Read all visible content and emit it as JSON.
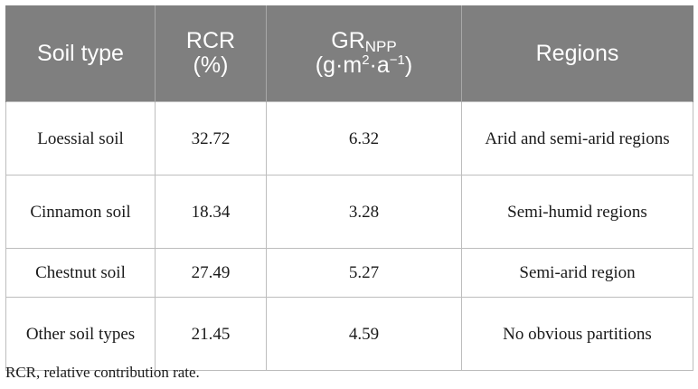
{
  "table": {
    "headers": {
      "soil_type": "Soil type",
      "rcr_line1": "RCR",
      "rcr_line2": "(%)",
      "gr_main": "GR",
      "gr_sub": "NPP",
      "gr_unit_a": "(g·m",
      "gr_unit_sup1": "2",
      "gr_unit_b": "·a",
      "gr_unit_sup2": "−1",
      "gr_unit_c": ")",
      "regions": "Regions"
    },
    "rows": [
      {
        "soil_type": "Loessial soil",
        "rcr": "32.72",
        "gr_npp": "6.32",
        "regions": "Arid and semi-arid regions"
      },
      {
        "soil_type": "Cinnamon soil",
        "rcr": "18.34",
        "gr_npp": "3.28",
        "regions": "Semi-humid regions"
      },
      {
        "soil_type": "Chestnut soil",
        "rcr": "27.49",
        "gr_npp": "5.27",
        "regions": "Semi-arid region"
      },
      {
        "soil_type": "Other soil types",
        "rcr": "21.45",
        "gr_npp": "4.59",
        "regions": "No obvious partitions"
      }
    ]
  },
  "footnote": "RCR, relative contribution rate."
}
